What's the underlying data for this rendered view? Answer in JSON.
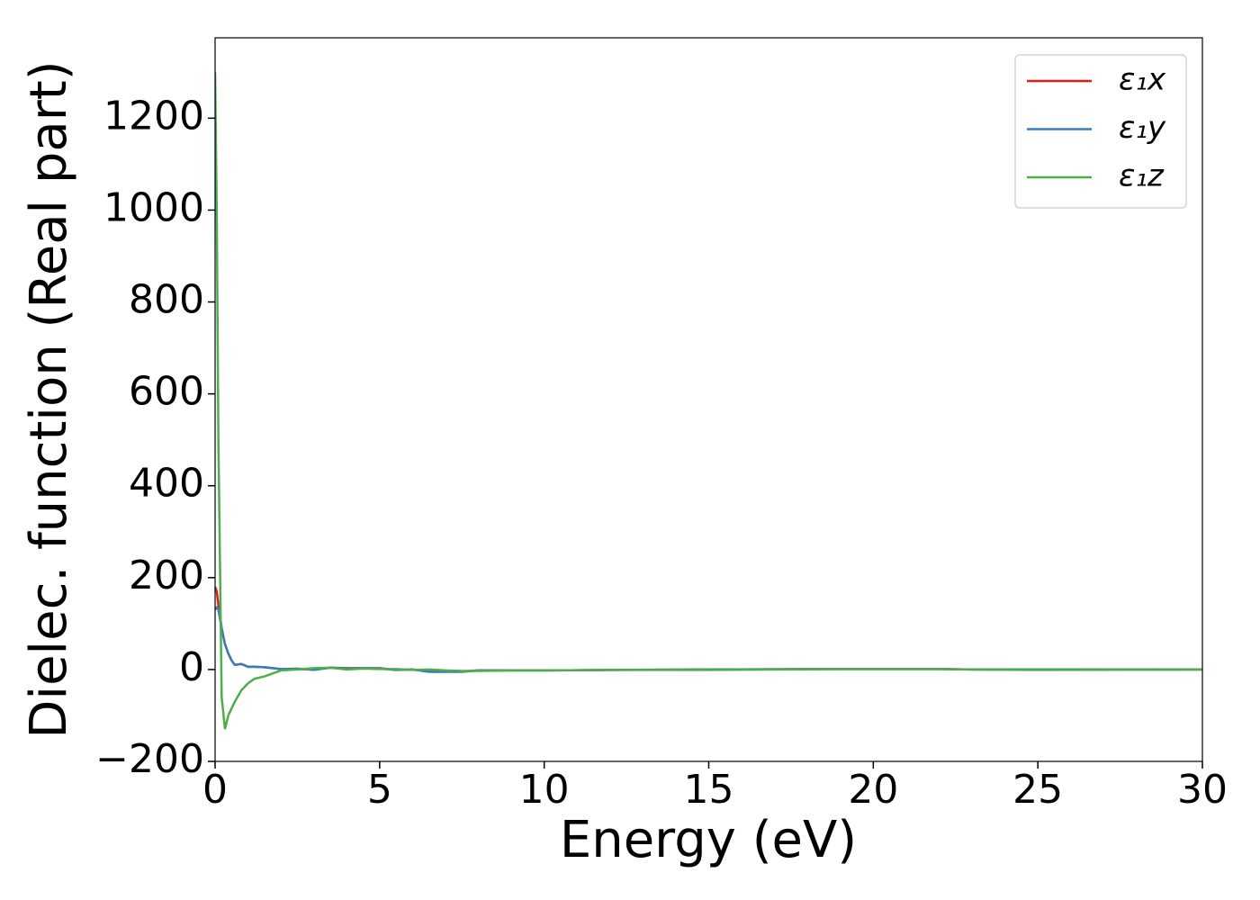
{
  "chart_data": {
    "type": "line",
    "xlabel": "Energy (eV)",
    "ylabel": "Dielec. function (Real part)",
    "x": [
      0,
      0.05,
      0.1,
      0.2,
      0.3,
      0.4,
      0.5,
      0.6,
      0.8,
      1.0,
      1.2,
      1.5,
      2,
      2.5,
      3,
      3.5,
      4,
      4.5,
      5,
      5.5,
      6,
      6.5,
      7,
      7.5,
      8,
      9,
      10,
      12,
      15,
      19,
      22,
      23,
      25,
      30
    ],
    "series": [
      {
        "name": "ε₁x",
        "color": "#e41a1c",
        "values": [
          180,
          170,
          140,
          90,
          55,
          35,
          20,
          10,
          12,
          6,
          6,
          5,
          1,
          1,
          0,
          4,
          3,
          3,
          3,
          -1,
          0,
          -4,
          -4,
          -4,
          -2,
          -2,
          -2,
          -1,
          0,
          1,
          1,
          0,
          0,
          0
        ]
      },
      {
        "name": "ε₁y",
        "color": "#377eb8",
        "values": [
          130,
          135,
          130,
          90,
          55,
          35,
          20,
          10,
          12,
          6,
          6,
          5,
          1,
          2,
          -1,
          4,
          2,
          3,
          2,
          -1,
          0,
          -5,
          -5,
          -5,
          -2,
          -2,
          -2,
          -1,
          0,
          1,
          1,
          0,
          0,
          0
        ]
      },
      {
        "name": "ε₁z",
        "color": "#4daf4a",
        "values": [
          1300,
          1000,
          500,
          -60,
          -130,
          -100,
          -85,
          -70,
          -45,
          -30,
          -20,
          -15,
          -2,
          0,
          3,
          4,
          0,
          2,
          1,
          1,
          -1,
          0,
          -2,
          -3,
          -3,
          -2,
          -2,
          -1,
          -1,
          1,
          1,
          0,
          -1,
          0
        ]
      }
    ],
    "xlim": [
      0,
      30
    ],
    "xticks": [
      0,
      5,
      10,
      15,
      20,
      25,
      30
    ],
    "ylim": [
      -200,
      1375
    ],
    "yticks": [
      {
        "value": -200,
        "label": "−200"
      },
      0,
      200,
      400,
      600,
      800,
      1000,
      1200
    ],
    "legend": "upper right"
  }
}
